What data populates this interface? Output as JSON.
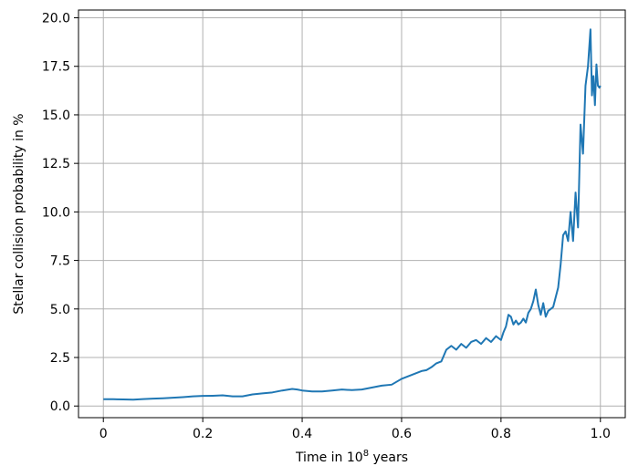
{
  "chart_data": {
    "type": "line",
    "xlabel": "Time in 10",
    "xlabel_superscript": "8",
    "xlabel_suffix": " years",
    "ylabel": "Stellar collision probability in %",
    "xlim": [
      -0.05,
      1.05
    ],
    "ylim": [
      -0.6,
      20.4
    ],
    "xticks": [
      0,
      0.2,
      0.4,
      0.6,
      0.8,
      1.0
    ],
    "xtick_labels": [
      "0",
      "0.2",
      "0.4",
      "0.6",
      "0.8",
      "1.0"
    ],
    "yticks": [
      0,
      2.5,
      5,
      7.5,
      10,
      12.5,
      15,
      17.5,
      20
    ],
    "ytick_labels": [
      "0.0",
      "2.5",
      "5.0",
      "7.5",
      "10.0",
      "12.5",
      "15.0",
      "17.5",
      "20.0"
    ],
    "grid": true,
    "series": [
      {
        "color": "#1f77b4",
        "x": [
          0.0,
          0.02,
          0.04,
          0.06,
          0.08,
          0.1,
          0.12,
          0.14,
          0.16,
          0.18,
          0.2,
          0.22,
          0.24,
          0.26,
          0.28,
          0.3,
          0.32,
          0.34,
          0.36,
          0.38,
          0.39,
          0.4,
          0.42,
          0.44,
          0.46,
          0.48,
          0.5,
          0.52,
          0.54,
          0.56,
          0.58,
          0.6,
          0.62,
          0.64,
          0.65,
          0.66,
          0.67,
          0.68,
          0.69,
          0.7,
          0.71,
          0.72,
          0.73,
          0.74,
          0.75,
          0.76,
          0.77,
          0.78,
          0.79,
          0.8,
          0.805,
          0.81,
          0.815,
          0.82,
          0.825,
          0.83,
          0.835,
          0.84,
          0.845,
          0.85,
          0.855,
          0.86,
          0.865,
          0.87,
          0.875,
          0.88,
          0.885,
          0.89,
          0.895,
          0.9,
          0.905,
          0.91,
          0.915,
          0.92,
          0.925,
          0.93,
          0.935,
          0.94,
          0.945,
          0.95,
          0.955,
          0.96,
          0.965,
          0.97,
          0.975,
          0.98,
          0.983,
          0.986,
          0.989,
          0.992,
          0.995,
          0.998,
          1.0
        ],
        "y": [
          0.35,
          0.35,
          0.34,
          0.33,
          0.36,
          0.38,
          0.4,
          0.43,
          0.46,
          0.5,
          0.52,
          0.53,
          0.55,
          0.5,
          0.5,
          0.6,
          0.65,
          0.7,
          0.8,
          0.88,
          0.85,
          0.8,
          0.75,
          0.75,
          0.8,
          0.85,
          0.82,
          0.85,
          0.95,
          1.05,
          1.1,
          1.4,
          1.6,
          1.8,
          1.85,
          2.0,
          2.2,
          2.3,
          2.9,
          3.1,
          2.9,
          3.2,
          3.0,
          3.3,
          3.4,
          3.2,
          3.5,
          3.3,
          3.6,
          3.4,
          3.8,
          4.1,
          4.7,
          4.6,
          4.2,
          4.4,
          4.2,
          4.3,
          4.5,
          4.3,
          4.8,
          5.0,
          5.4,
          6.0,
          5.2,
          4.7,
          5.3,
          4.6,
          4.9,
          5.0,
          5.1,
          5.6,
          6.1,
          7.3,
          8.8,
          9.0,
          8.5,
          10.0,
          8.5,
          11.0,
          9.2,
          14.5,
          13.0,
          16.5,
          17.5,
          19.4,
          16.0,
          17.0,
          15.5,
          17.6,
          16.5,
          16.4,
          16.5
        ]
      }
    ]
  }
}
